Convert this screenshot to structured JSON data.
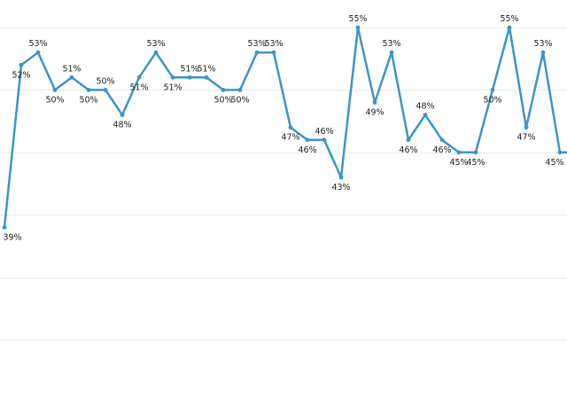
{
  "chart_data": {
    "type": "line",
    "title": "",
    "xlabel": "",
    "ylabel": "",
    "ylim": [
      30,
      56
    ],
    "grid": true,
    "legend": "none",
    "series": [
      {
        "color": "#3d94c8",
        "values": [
          39,
          52,
          53,
          50,
          51,
          50,
          50,
          48,
          51,
          53,
          51,
          51,
          51,
          50,
          50,
          53,
          53,
          47,
          46,
          46,
          43,
          55,
          49,
          53,
          46,
          48,
          46,
          45,
          45,
          50,
          55,
          47,
          53,
          45,
          45
        ],
        "labels": [
          "39%",
          "52%",
          "53%",
          "50%",
          "51%",
          "50%",
          "50%",
          "48%",
          "51%",
          "53%",
          "51%",
          "51%",
          "51%",
          "50%",
          "50%",
          "53%",
          "53%",
          "47%",
          "46%",
          "46%",
          "43%",
          "55%",
          "49%",
          "53%",
          "46%",
          "48%",
          "46%",
          "45%",
          "45%",
          "50%",
          "55%",
          "47%",
          "53%",
          "45%",
          ""
        ]
      }
    ]
  }
}
